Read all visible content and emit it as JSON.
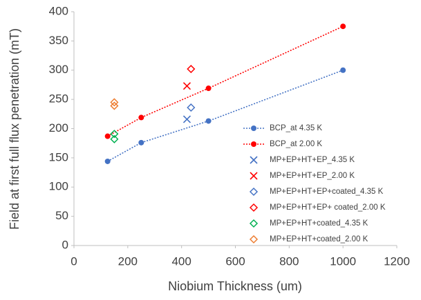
{
  "chart_data": {
    "type": "scatter",
    "x_label": "Niobium Thickness (um)",
    "y_label": "Field at first full flux penetration (mT)",
    "xlim": [
      0,
      1200
    ],
    "xticks": [
      0,
      200,
      400,
      600,
      800,
      1000,
      1200
    ],
    "ylim": [
      0,
      400
    ],
    "yticks": [
      0,
      50,
      100,
      150,
      200,
      250,
      300,
      350,
      400
    ],
    "grid": false,
    "legend": "right",
    "series": [
      {
        "name": "BCP_at 4.35 K",
        "color": "#4472c4",
        "marker": "circle",
        "line": true,
        "x": [
          125,
          250,
          500,
          1000
        ],
        "values": [
          144,
          176,
          213,
          300
        ]
      },
      {
        "name": "BCP_at 2.00 K",
        "color": "#ff0000",
        "marker": "circle",
        "line": true,
        "x": [
          125,
          250,
          500,
          1000
        ],
        "values": [
          187,
          219,
          269,
          375
        ]
      },
      {
        "name": "MP+EP+HT+EP_4.35 K",
        "color": "#4472c4",
        "marker": "x",
        "line": false,
        "x": [
          420
        ],
        "values": [
          216
        ]
      },
      {
        "name": "MP+EP+HT+EP_2.00 K",
        "color": "#ff0000",
        "marker": "x",
        "line": false,
        "x": [
          420
        ],
        "values": [
          273
        ]
      },
      {
        "name": "MP+EP+HT+EP+coated_4.35 K",
        "color": "#4472c4",
        "marker": "diamond",
        "line": false,
        "x": [
          435
        ],
        "values": [
          236
        ]
      },
      {
        "name": "MP+EP+HT+EP+ coated_2.00 K",
        "color": "#ff0000",
        "marker": "diamond",
        "line": false,
        "x": [
          435
        ],
        "values": [
          302
        ]
      },
      {
        "name": "MP+EP+HT+coated_4.35 K",
        "color": "#00b050",
        "marker": "diamond",
        "line": false,
        "x": [
          150,
          150
        ],
        "values": [
          191,
          182
        ]
      },
      {
        "name": "MP+EP+HT+coated_2.00 K",
        "color": "#ed7d31",
        "marker": "diamond",
        "line": false,
        "x": [
          150,
          150
        ],
        "values": [
          245,
          239
        ]
      }
    ]
  }
}
